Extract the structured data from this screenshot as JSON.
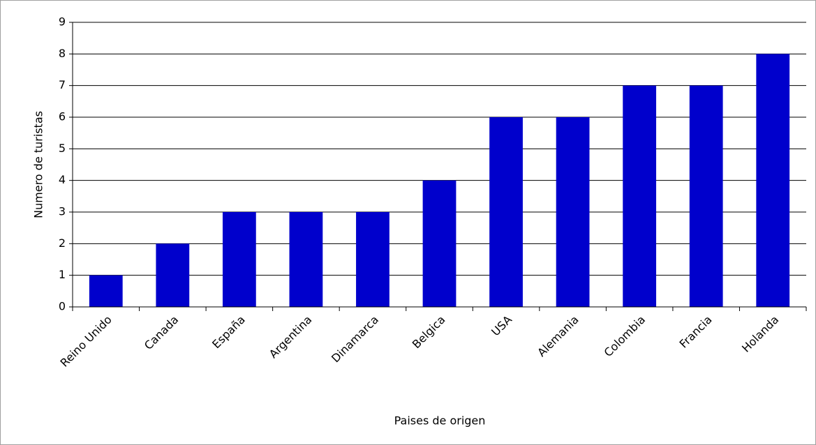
{
  "chart_data": {
    "type": "bar",
    "x_label": "Paises de origen",
    "y_label": "Numero de turistas",
    "categories": [
      "Reino Unido",
      "Canada",
      "España",
      "Argentina",
      "Dinamarca",
      "Belgica",
      "USA",
      "Alemania",
      "Colombia",
      "Francia",
      "Holanda"
    ],
    "values": [
      1,
      2,
      3,
      3,
      3,
      4,
      6,
      6,
      7,
      7,
      8
    ],
    "color": "#0000cc",
    "ylim": [
      0,
      9
    ],
    "yticks": [
      0,
      1,
      2,
      3,
      4,
      5,
      6,
      7,
      8,
      9
    ],
    "grid": true
  }
}
